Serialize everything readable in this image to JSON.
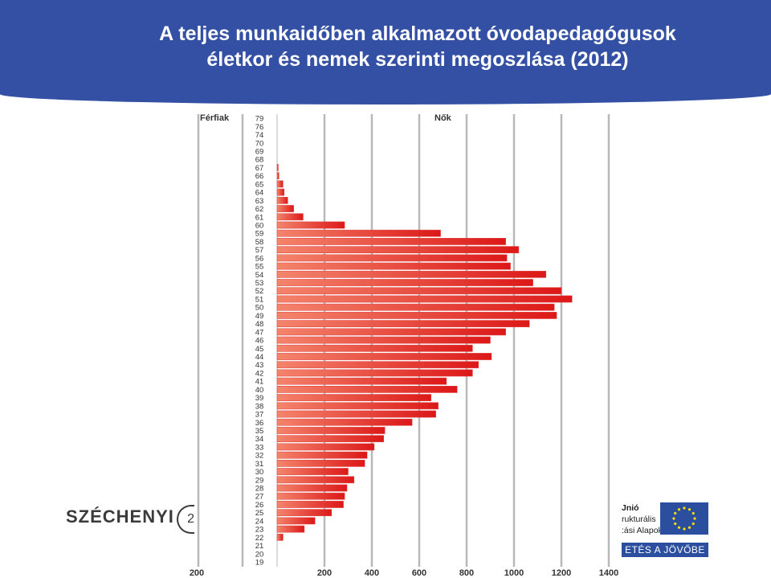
{
  "header": {
    "title_line1": "A teljes munkaidőben alkalmazott óvodapedagógusok",
    "title_line2": "életkor és nemek szerinti megoszlása (2012)"
  },
  "logos": {
    "left_text": "SZÉCHENYI",
    "left_symbol": "2",
    "eu_line1": "Jnió",
    "eu_line2": "rukturális",
    "eu_line3": ":ási Alapok",
    "eu_bar": "ETÉS A JÖVŐBE"
  },
  "colors": {
    "banner": "#3450a4",
    "bar_dark": "#dc1818",
    "bar_light": "#f4846c"
  },
  "chart_data": {
    "type": "bar",
    "orientation": "horizontal",
    "layout": "population-pyramid",
    "left_label": "Férfiak",
    "right_label": "Nők",
    "x_ticks": [
      "200",
      "200",
      "400",
      "600",
      "800",
      "1000",
      "1200",
      "1400"
    ],
    "categories": [
      79,
      76,
      74,
      70,
      69,
      68,
      67,
      66,
      65,
      64,
      63,
      62,
      61,
      60,
      59,
      58,
      57,
      56,
      55,
      54,
      53,
      52,
      51,
      50,
      49,
      48,
      47,
      46,
      45,
      44,
      43,
      42,
      41,
      40,
      39,
      38,
      37,
      36,
      35,
      34,
      33,
      32,
      31,
      30,
      29,
      28,
      27,
      26,
      25,
      24,
      23,
      22,
      21,
      20,
      19
    ],
    "series": [
      {
        "name": "Nők",
        "values": [
          0,
          0,
          0,
          0,
          0,
          0,
          5,
          8,
          25,
          30,
          45,
          70,
          110,
          285,
          690,
          965,
          1020,
          970,
          985,
          1135,
          1080,
          1200,
          1245,
          1170,
          1180,
          1065,
          965,
          900,
          825,
          905,
          850,
          825,
          715,
          760,
          650,
          680,
          670,
          570,
          455,
          450,
          410,
          380,
          370,
          300,
          325,
          295,
          285,
          280,
          230,
          160,
          115,
          25,
          0,
          0,
          0
        ]
      }
    ]
  }
}
